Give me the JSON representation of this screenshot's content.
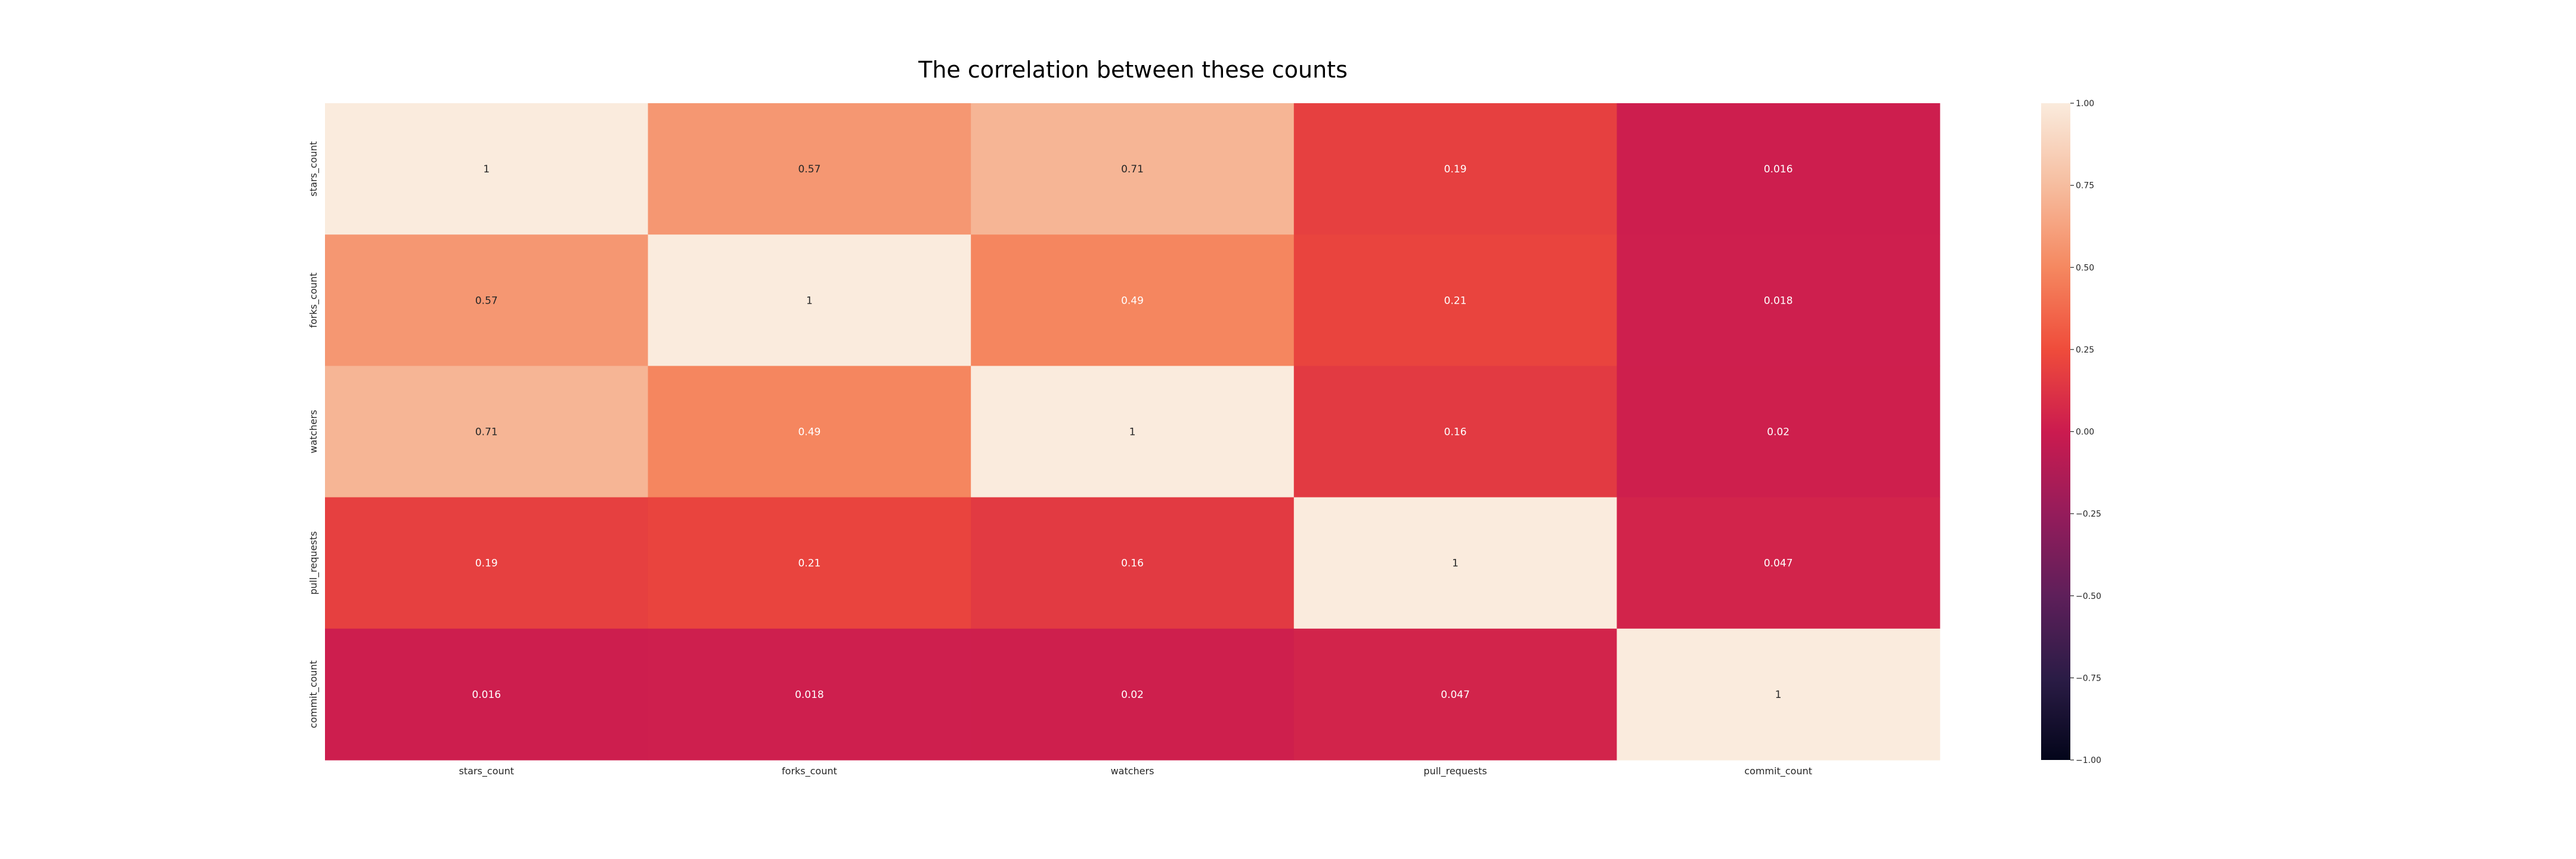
{
  "chart_data": {
    "type": "heatmap",
    "title": "The correlation between these counts",
    "x_labels": [
      "stars_count",
      "forks_count",
      "watchers",
      "pull_requests",
      "commit_count"
    ],
    "y_labels": [
      "stars_count",
      "forks_count",
      "watchers",
      "pull_requests",
      "commit_count"
    ],
    "values": [
      [
        1,
        0.57,
        0.71,
        0.19,
        0.016
      ],
      [
        0.57,
        1,
        0.49,
        0.21,
        0.018
      ],
      [
        0.71,
        0.49,
        1,
        0.16,
        0.02
      ],
      [
        0.19,
        0.21,
        0.16,
        1,
        0.047
      ],
      [
        0.016,
        0.018,
        0.02,
        0.047,
        1
      ]
    ],
    "cell_labels": [
      [
        "1",
        "0.57",
        "0.71",
        "0.19",
        "0.016"
      ],
      [
        "0.57",
        "1",
        "0.49",
        "0.21",
        "0.018"
      ],
      [
        "0.71",
        "0.49",
        "1",
        "0.16",
        "0.02"
      ],
      [
        "0.19",
        "0.21",
        "0.16",
        "1",
        "0.047"
      ],
      [
        "0.016",
        "0.018",
        "0.02",
        "0.047",
        "1"
      ]
    ],
    "colorbar": {
      "range": [
        -1,
        1
      ],
      "ticks": [
        1.0,
        0.75,
        0.5,
        0.25,
        0.0,
        -0.25,
        -0.5,
        -0.75,
        -1.0
      ],
      "tick_labels": [
        "1.00",
        "0.75",
        "0.50",
        "0.25",
        "0.00",
        "−0.25",
        "−0.50",
        "−0.75",
        "−1.00"
      ]
    },
    "colormap": "rocket",
    "colormap_stops": [
      [
        0.0,
        "#03051a"
      ],
      [
        0.125,
        "#2b1c46"
      ],
      [
        0.25,
        "#5e1f5a"
      ],
      [
        0.375,
        "#951c5b"
      ],
      [
        0.5,
        "#cb1b4f"
      ],
      [
        0.625,
        "#ef4c3b"
      ],
      [
        0.75,
        "#f58860"
      ],
      [
        0.875,
        "#f6bd9f"
      ],
      [
        1.0,
        "#faebdd"
      ]
    ],
    "grid": false
  }
}
